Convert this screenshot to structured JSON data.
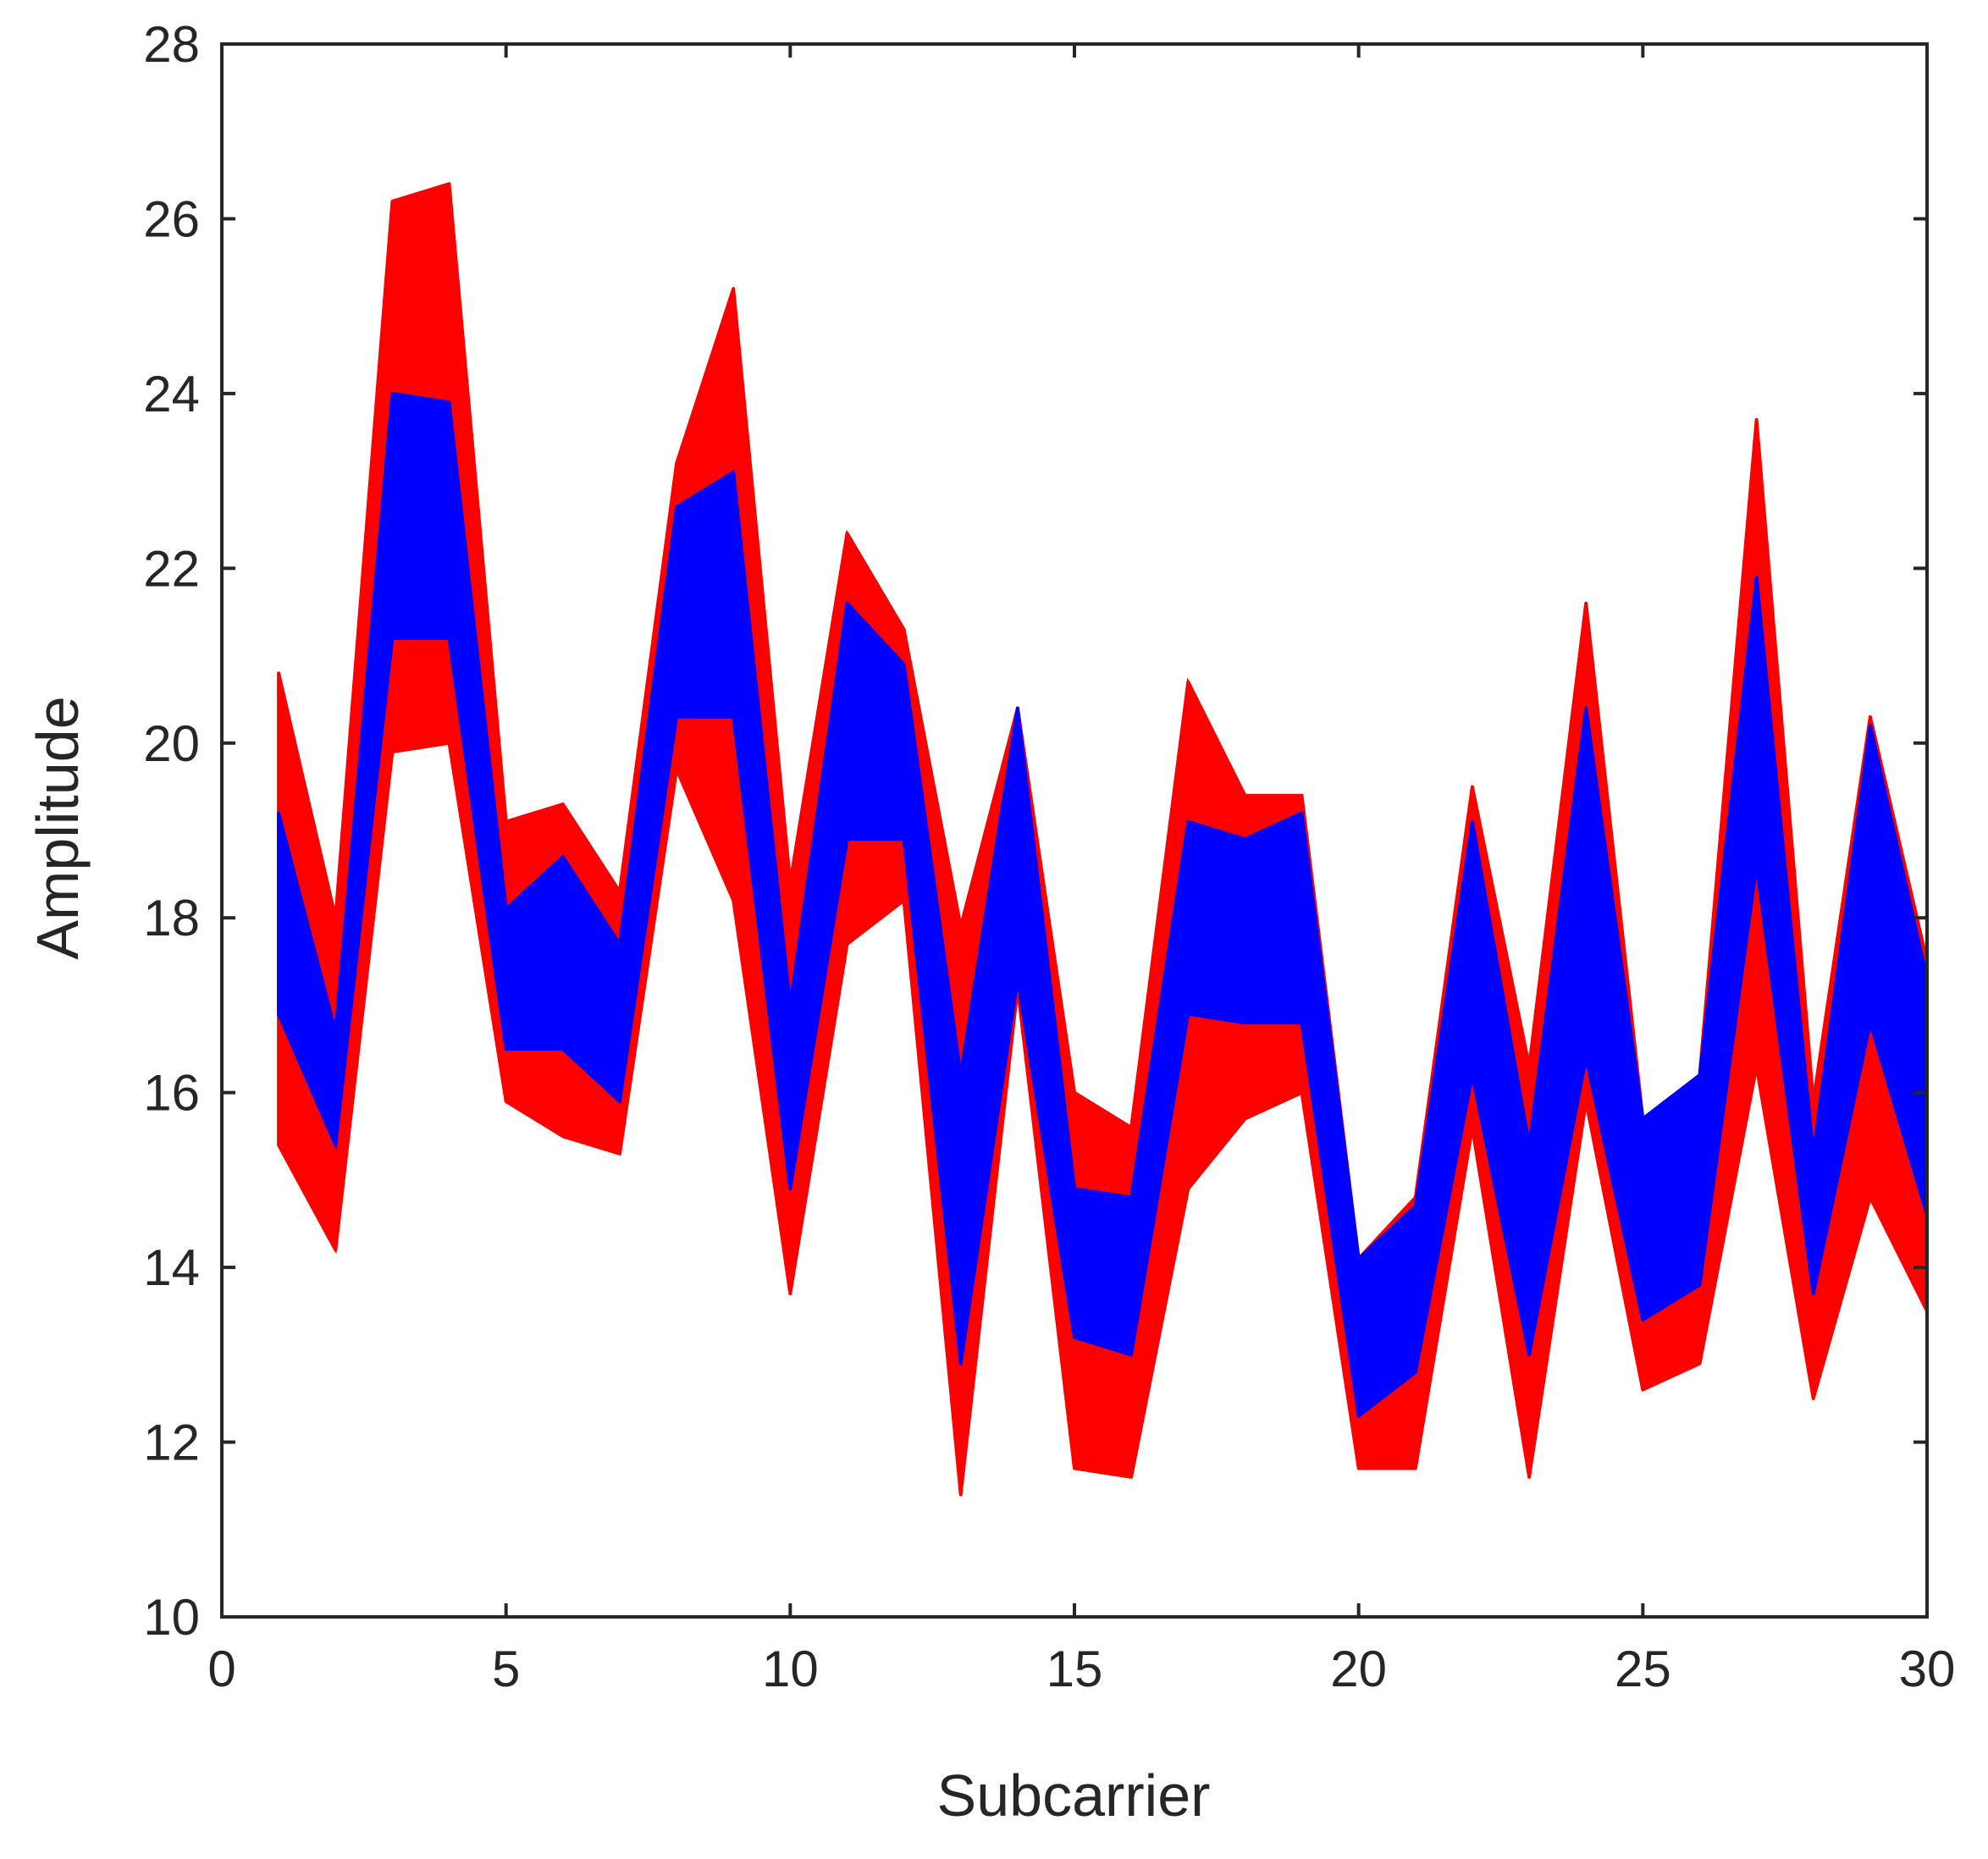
{
  "chart_data": {
    "type": "line",
    "title": "",
    "xlabel": "Subcarrier",
    "ylabel": "Amplitude",
    "xlim": [
      0,
      30
    ],
    "ylim": [
      10,
      28
    ],
    "xticks": [
      0,
      5,
      10,
      15,
      20,
      25,
      30
    ],
    "yticks": [
      10,
      12,
      14,
      16,
      18,
      20,
      22,
      24,
      26,
      28
    ],
    "grid": false,
    "legend": "none",
    "x": [
      1,
      2,
      3,
      4,
      5,
      6,
      7,
      8,
      9,
      10,
      11,
      12,
      13,
      14,
      15,
      16,
      17,
      18,
      19,
      20,
      21,
      22,
      23,
      24,
      25,
      26,
      27,
      28,
      29,
      30
    ],
    "series": [
      {
        "color": "#ff0000",
        "style": "envelope",
        "upper": [
          20.8,
          18.0,
          26.2,
          26.4,
          19.1,
          19.3,
          18.3,
          23.2,
          25.2,
          18.4,
          22.4,
          21.3,
          17.9,
          20.4,
          16.0,
          15.6,
          20.7,
          19.4,
          19.4,
          14.1,
          14.8,
          19.5,
          16.3,
          21.6,
          15.7,
          16.2,
          23.7,
          15.9,
          20.3,
          17.5
        ],
        "lower": [
          15.4,
          14.2,
          19.9,
          20.0,
          15.9,
          15.5,
          15.3,
          19.7,
          18.2,
          13.7,
          17.7,
          18.2,
          11.4,
          17.2,
          11.7,
          11.6,
          14.9,
          15.7,
          16.0,
          11.7,
          11.7,
          15.6,
          11.6,
          15.9,
          12.6,
          12.9,
          16.3,
          12.5,
          14.8,
          13.5
        ]
      },
      {
        "color": "#0000ff",
        "style": "envelope",
        "upper": [
          19.2,
          16.7,
          24.0,
          23.9,
          18.1,
          18.7,
          17.7,
          22.7,
          23.1,
          17.0,
          21.6,
          20.9,
          16.2,
          20.4,
          14.9,
          14.8,
          19.1,
          18.9,
          19.2,
          14.1,
          14.7,
          19.1,
          15.4,
          20.4,
          15.7,
          16.2,
          21.9,
          15.3,
          20.2,
          17.3
        ],
        "lower": [
          16.9,
          15.4,
          21.2,
          21.2,
          16.5,
          16.5,
          15.9,
          20.3,
          20.3,
          14.9,
          18.9,
          18.9,
          12.9,
          17.3,
          13.2,
          13.0,
          16.9,
          16.8,
          16.8,
          12.3,
          12.8,
          16.2,
          13.0,
          16.4,
          13.4,
          13.8,
          18.6,
          13.7,
          16.8,
          14.6
        ]
      }
    ]
  }
}
